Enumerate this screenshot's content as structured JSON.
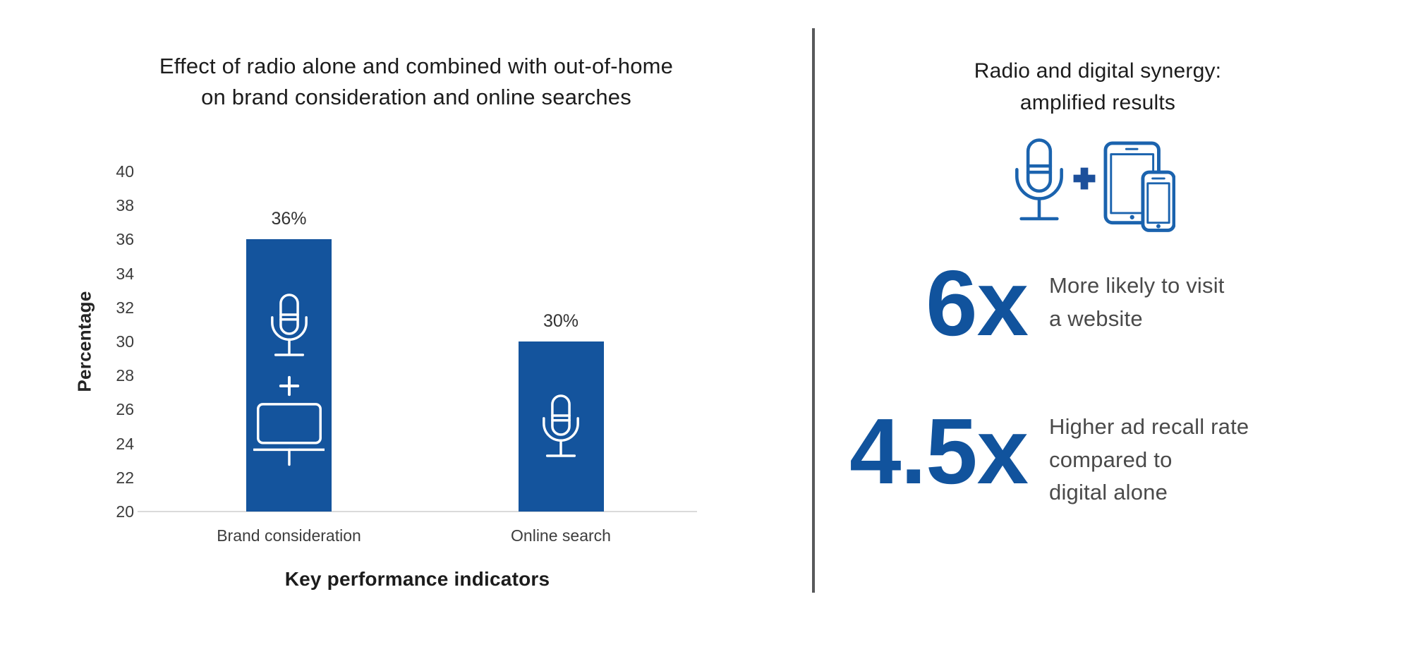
{
  "page": {
    "background": "#ffffff"
  },
  "left_panel": {
    "title_line1": "Effect of radio alone and combined with out-of-home",
    "title_line2": "on brand consideration and online searches",
    "y_axis_label": "Percentage",
    "x_axis_label": "Key performance indicators"
  },
  "chart_data": {
    "type": "bar",
    "title": "Effect of radio alone and combined with out-of-home on brand consideration and online searches",
    "xlabel": "Key performance indicators",
    "ylabel": "Percentage",
    "ylim": [
      20,
      40
    ],
    "yticks": [
      20,
      22,
      24,
      26,
      28,
      30,
      32,
      34,
      36,
      38,
      40
    ],
    "grid": false,
    "legend_position": "none",
    "categories": [
      "Brand consideration",
      "Online search"
    ],
    "values": [
      36,
      30
    ],
    "data_labels": [
      "36%",
      "30%"
    ],
    "bar_color": "#14549d",
    "bar_icons": [
      [
        "microphone",
        "plus",
        "billboard"
      ],
      [
        "microphone"
      ]
    ],
    "icon_color_in_bars": "#ffffff",
    "axis_line_color": "#dadada"
  },
  "right_panel": {
    "title_line1": "Radio and digital synergy:",
    "title_line2": "amplified results",
    "icons": [
      "microphone-icon",
      "plus-icon",
      "tablet-phone-icon"
    ],
    "stats": [
      {
        "multiplier": "6x",
        "lines": [
          "More likely to visit",
          "a website"
        ]
      },
      {
        "multiplier": "4.5x",
        "lines": [
          "Higher ad recall rate",
          "compared to",
          "digital alone"
        ]
      }
    ],
    "accent_blue": "#11539d",
    "icon_blue": "#1b63ae",
    "plus_blue": "#1c4f9b",
    "divider_color": "#58595b"
  }
}
